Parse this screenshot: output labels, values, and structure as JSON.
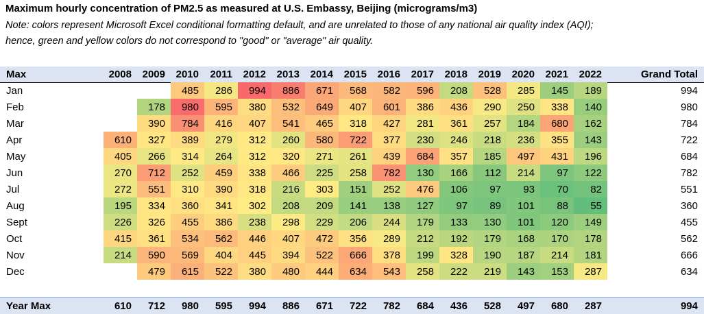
{
  "title": "Maximum hourly concentration of PM2.5 as measured at U.S. Embassy, Beijing (micrograms/m3)",
  "note_line1": "Note: colors represent Microsoft Excel conditional formatting default, and are unrelated to those of any national air quality index (AQI);",
  "note_line2": "hence, green and yellow colors do not correspond to \"good\" or \"average\" air quality.",
  "header": {
    "label": "Max",
    "grand_total": "Grand Total"
  },
  "years": [
    "2008",
    "2009",
    "2010",
    "2011",
    "2012",
    "2013",
    "2014",
    "2015",
    "2016",
    "2017",
    "2018",
    "2019",
    "2020",
    "2021",
    "2022"
  ],
  "colors": {
    "low": "#63BE7B",
    "mid": "#FFEB84",
    "high": "#F8696B",
    "header_bg": "#DCE3F2"
  },
  "rows": [
    {
      "month": "Jan",
      "values": [
        null,
        null,
        485,
        286,
        994,
        886,
        671,
        568,
        582,
        596,
        208,
        528,
        285,
        145,
        189
      ],
      "grand_total": "994"
    },
    {
      "month": "Feb",
      "values": [
        null,
        178,
        980,
        595,
        380,
        532,
        649,
        407,
        601,
        386,
        436,
        290,
        250,
        338,
        140
      ],
      "grand_total": "980"
    },
    {
      "month": "Mar",
      "values": [
        null,
        390,
        784,
        416,
        407,
        541,
        465,
        318,
        427,
        281,
        361,
        257,
        184,
        680,
        162
      ],
      "grand_total": "784"
    },
    {
      "month": "Apr",
      "values": [
        610,
        327,
        389,
        279,
        312,
        260,
        580,
        722,
        377,
        230,
        246,
        218,
        236,
        355,
        143
      ],
      "grand_total": "722"
    },
    {
      "month": "May",
      "values": [
        405,
        266,
        314,
        264,
        312,
        320,
        271,
        261,
        439,
        684,
        357,
        185,
        497,
        431,
        196
      ],
      "grand_total": "684"
    },
    {
      "month": "Jun",
      "values": [
        270,
        712,
        252,
        459,
        338,
        466,
        225,
        258,
        782,
        130,
        166,
        112,
        214,
        97,
        122
      ],
      "grand_total": "782"
    },
    {
      "month": "Jul",
      "values": [
        272,
        551,
        310,
        390,
        318,
        216,
        303,
        151,
        252,
        476,
        106,
        97,
        93,
        70,
        82
      ],
      "grand_total": "551"
    },
    {
      "month": "Aug",
      "values": [
        195,
        334,
        360,
        341,
        302,
        208,
        209,
        141,
        138,
        127,
        97,
        89,
        101,
        88,
        55
      ],
      "grand_total": "360"
    },
    {
      "month": "Sept",
      "values": [
        226,
        326,
        455,
        386,
        238,
        298,
        229,
        206,
        244,
        179,
        133,
        130,
        101,
        120,
        149
      ],
      "grand_total": "455"
    },
    {
      "month": "Oct",
      "values": [
        415,
        361,
        534,
        562,
        446,
        407,
        472,
        356,
        289,
        212,
        192,
        179,
        168,
        170,
        178
      ],
      "grand_total": "562"
    },
    {
      "month": "Nov",
      "values": [
        214,
        590,
        569,
        404,
        445,
        394,
        522,
        666,
        378,
        199,
        328,
        190,
        187,
        214,
        181
      ],
      "grand_total": "666"
    },
    {
      "month": "Dec",
      "values": [
        null,
        479,
        615,
        522,
        380,
        480,
        444,
        634,
        543,
        258,
        222,
        219,
        143,
        153,
        287
      ],
      "grand_total": "634"
    }
  ],
  "year_max": {
    "label": "Year Max",
    "values": [
      "610",
      "712",
      "980",
      "595",
      "994",
      "886",
      "671",
      "722",
      "782",
      "684",
      "436",
      "528",
      "497",
      "680",
      "287"
    ],
    "grand_total": "994"
  }
}
